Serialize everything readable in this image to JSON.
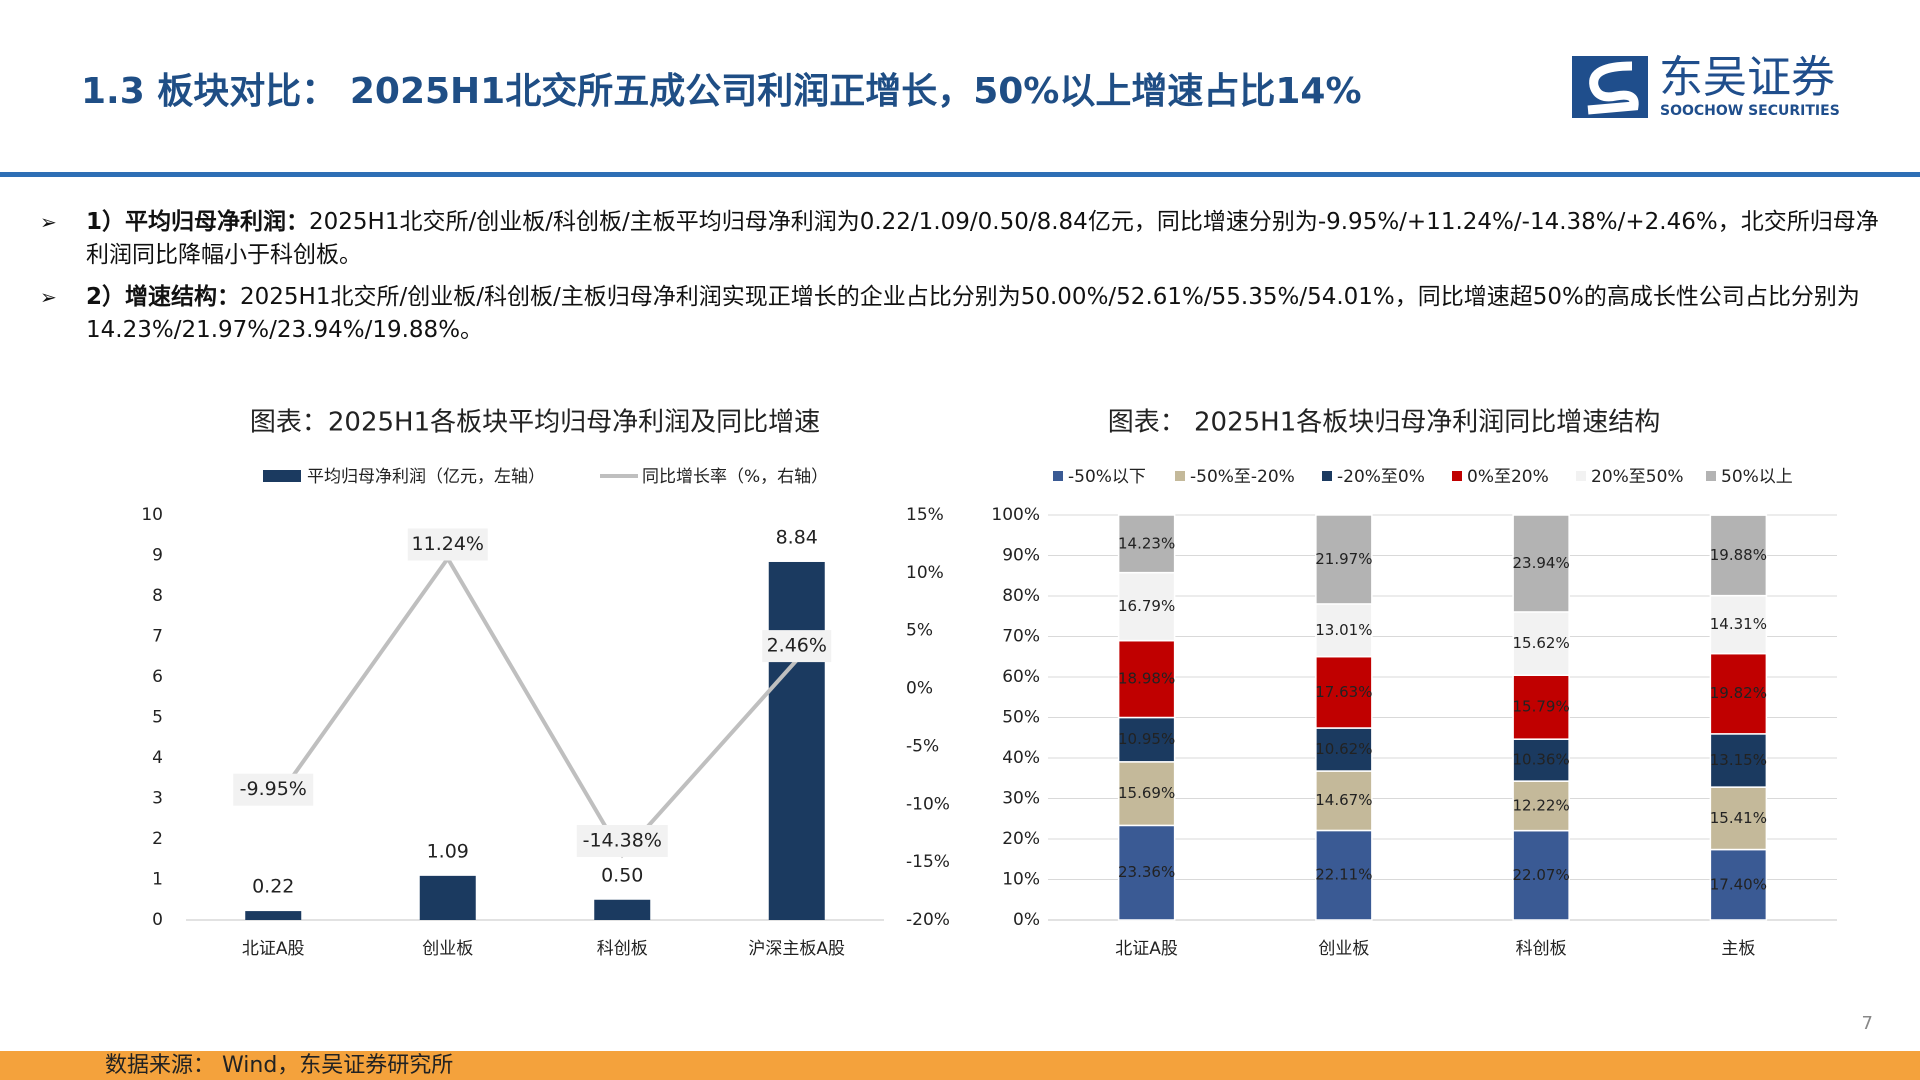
{
  "header": {
    "title": "1.3 板块对比： 2025H1北交所五成公司利润正增长，50%以上增速占比14%",
    "logo_cn": "东吴证券",
    "logo_en": "SOOCHOW SECURITIES"
  },
  "bullets": [
    {
      "lead": "1）平均归母净利润：",
      "text": "2025H1北交所/创业板/科创板/主板平均归母净利润为0.22/1.09/0.50/8.84亿元，同比增速分别为-9.95%/+11.24%/-14.38%/+2.46%，北交所归母净利润同比降幅小于科创板。"
    },
    {
      "lead": "2）增速结构：",
      "text": "2025H1北交所/创业板/科创板/主板归母净利润实现正增长的企业占比分别为50.00%/52.61%/55.35%/54.01%，同比增速超50%的高成长性公司占比分别为14.23%/21.97%/23.94%/19.88%。"
    }
  ],
  "chart_data": [
    {
      "type": "combo",
      "title": "图表：2025H1各板块平均归母净利润及同比增速",
      "categories": [
        "北证A股",
        "创业板",
        "科创板",
        "沪深主板A股"
      ],
      "series": [
        {
          "name": "平均归母净利润（亿元，左轴）",
          "color": "#1b3a60",
          "values": [
            0.22,
            1.09,
            0.5,
            8.84
          ],
          "value_labels": [
            "0.22",
            "1.09",
            "0.50",
            "8.84"
          ]
        },
        {
          "name": "同比增长率（%，右轴）",
          "color": "#bfbfbf",
          "axis": "y2",
          "values": [
            -9.95,
            11.24,
            -14.38,
            2.46
          ],
          "value_labels": [
            "-9.95%",
            "11.24%",
            "-14.38%",
            "2.46%"
          ]
        }
      ],
      "ylim": [
        0,
        10
      ],
      "yticks": [
        0,
        1,
        2,
        3,
        4,
        5,
        6,
        7,
        8,
        9,
        10
      ],
      "y2lim": [
        -20,
        15
      ],
      "y2ticks": [
        {
          "value": -20,
          "label": "-20%"
        },
        {
          "value": -15,
          "label": "-15%"
        },
        {
          "value": -10,
          "label": "-10%"
        },
        {
          "value": -5,
          "label": "-5%"
        },
        {
          "value": 0,
          "label": "0%"
        },
        {
          "value": 5,
          "label": "5%"
        },
        {
          "value": 10,
          "label": "10%"
        },
        {
          "value": 15,
          "label": "15%"
        }
      ],
      "grid": false
    },
    {
      "type": "stacked",
      "title": "图表： 2025H1各板块归母净利润同比增速结构",
      "categories": [
        "北证A股",
        "创业板",
        "科创板",
        "主板"
      ],
      "series": [
        {
          "name": "-50%以下",
          "color": "#3a5a94",
          "values": [
            23.36,
            22.11,
            22.07,
            17.4
          ],
          "value_labels": [
            "23.36%",
            "22.11%",
            "22.07%",
            "17.40%"
          ]
        },
        {
          "name": "-50%至-20%",
          "color": "#c4b99a",
          "values": [
            15.69,
            14.67,
            12.22,
            15.41
          ],
          "value_labels": [
            "15.69%",
            "14.67%",
            "12.22%",
            "15.41%"
          ]
        },
        {
          "name": "-20%至0%",
          "color": "#1b3a60",
          "values": [
            10.95,
            10.62,
            10.36,
            13.15
          ],
          "value_labels": [
            "10.95%",
            "10.62%",
            "10.36%",
            "13.15%"
          ]
        },
        {
          "name": "0%至20%",
          "color": "#c00000",
          "values": [
            18.98,
            17.63,
            15.79,
            19.82
          ],
          "value_labels": [
            "18.98%",
            "17.63%",
            "15.79%",
            "19.82%"
          ]
        },
        {
          "name": "20%至50%",
          "color": "#f2f2f2",
          "values": [
            16.79,
            13.01,
            15.62,
            14.31
          ],
          "value_labels": [
            "16.79%",
            "13.01%",
            "15.62%",
            "14.31%"
          ]
        },
        {
          "name": "50%以上",
          "color": "#b3b3b3",
          "values": [
            14.23,
            21.97,
            23.94,
            19.88
          ],
          "value_labels": [
            "14.23%",
            "21.97%",
            "23.94%",
            "19.88%"
          ]
        }
      ],
      "ylim": [
        0,
        100
      ],
      "yticks": [
        {
          "value": 0,
          "label": "0%"
        },
        {
          "value": 10,
          "label": "10%"
        },
        {
          "value": 20,
          "label": "20%"
        },
        {
          "value": 30,
          "label": "30%"
        },
        {
          "value": 40,
          "label": "40%"
        },
        {
          "value": 50,
          "label": "50%"
        },
        {
          "value": 60,
          "label": "60%"
        },
        {
          "value": 70,
          "label": "70%"
        },
        {
          "value": 80,
          "label": "80%"
        },
        {
          "value": 90,
          "label": "90%"
        },
        {
          "value": 100,
          "label": "100%"
        }
      ],
      "grid": true
    }
  ],
  "page_number": "7",
  "footer": "数据来源： Wind，东吴证券研究所"
}
